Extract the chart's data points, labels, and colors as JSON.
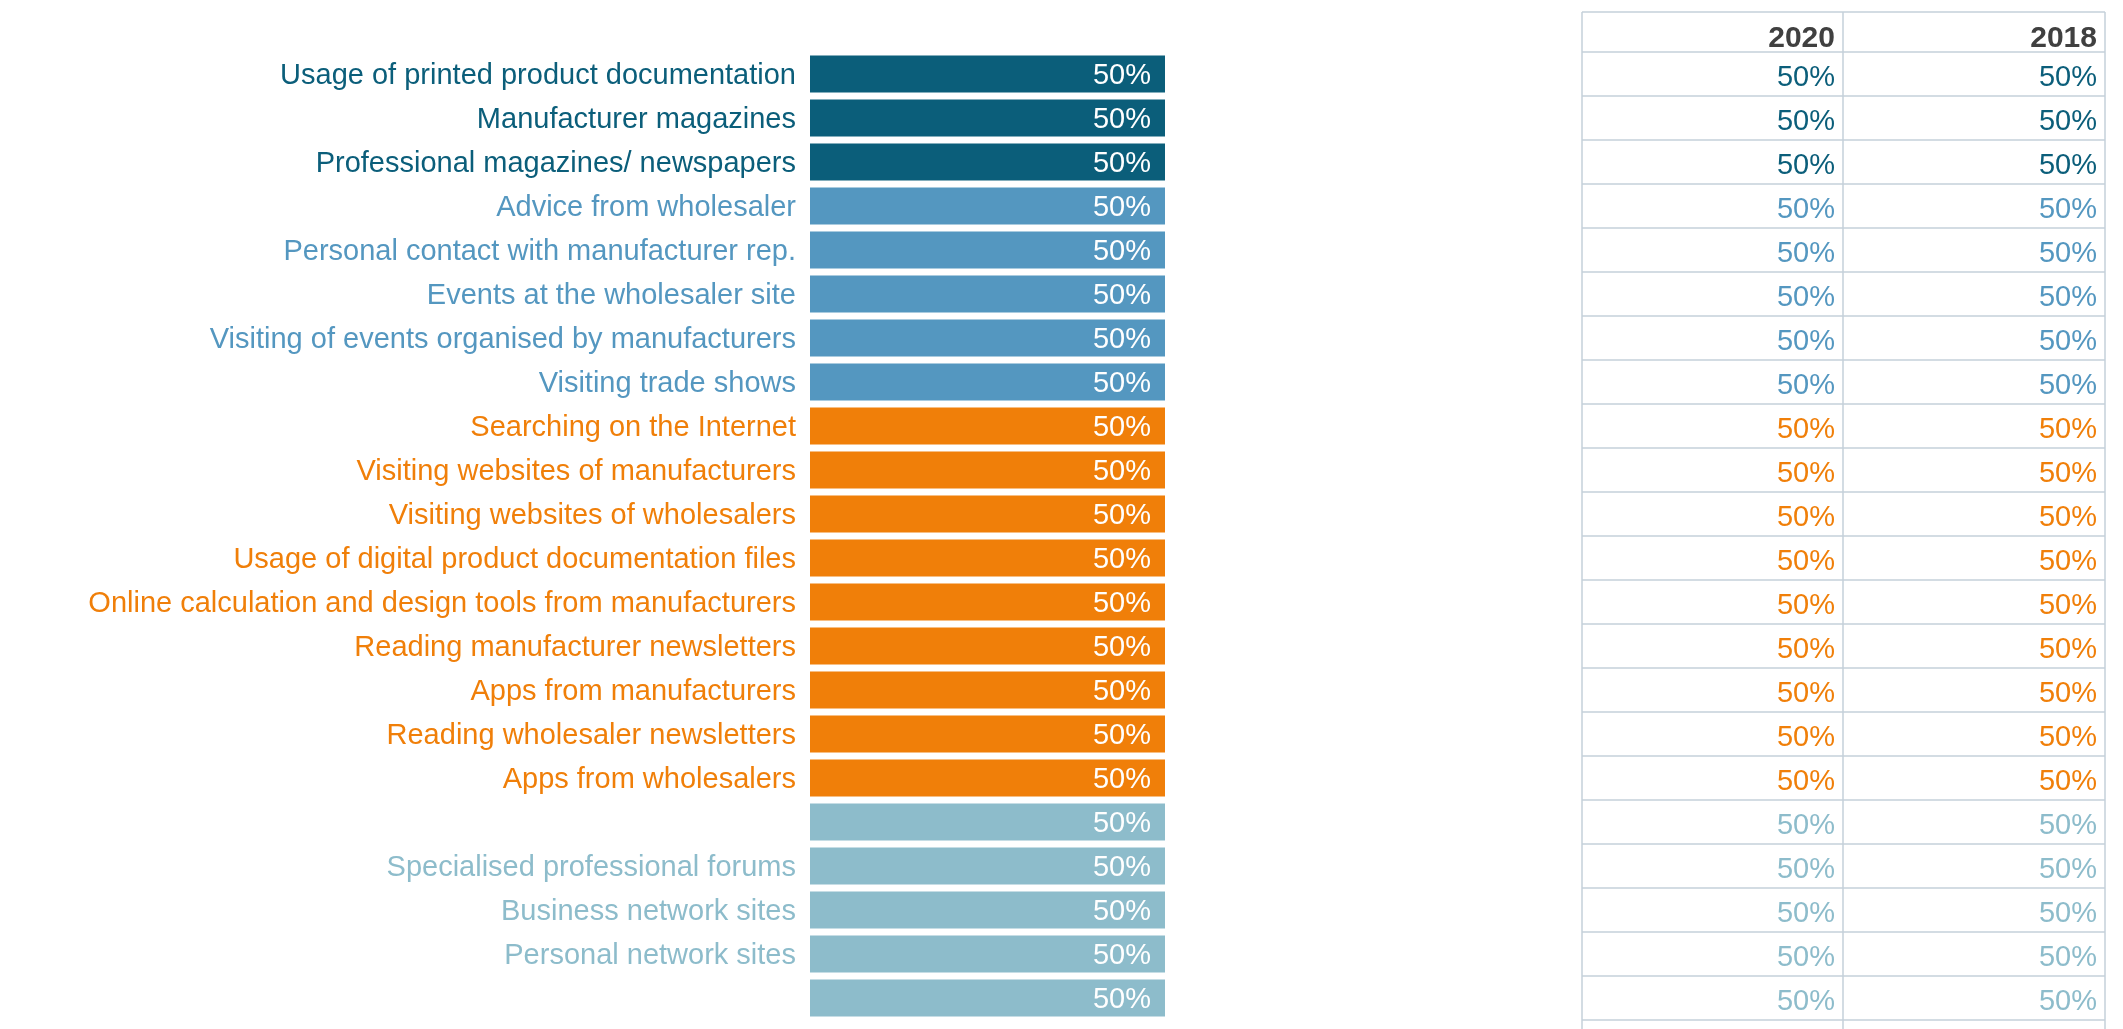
{
  "chart_data": [
    {
      "type": "bar",
      "orientation": "horizontal",
      "categories": [
        "Usage of printed product documentation",
        "Manufacturer magazines",
        "Professional magazines/ newspapers",
        "Advice from wholesaler",
        "Personal contact with manufacturer rep.",
        "Events at the wholesaler site",
        "Visiting of events organised by manufacturers",
        "Visiting trade shows",
        "Searching on the Internet",
        "Visiting websites of manufacturers",
        "Visiting websites of wholesalers",
        "Usage of digital product documentation files",
        "Online calculation and design tools from manufacturers",
        "Reading manufacturer newsletters",
        "Apps from manufacturers",
        "Reading wholesaler newsletters",
        "Apps from wholesalers",
        null,
        "Specialised professional forums",
        "Business network sites",
        "Personal network sites",
        null
      ],
      "values": [
        50,
        50,
        50,
        50,
        50,
        50,
        50,
        50,
        50,
        50,
        50,
        50,
        50,
        50,
        50,
        50,
        50,
        50,
        50,
        50,
        50,
        50
      ],
      "colors": [
        "#0b5e7a",
        "#0b5e7a",
        "#0b5e7a",
        "#5497c0",
        "#5497c0",
        "#5497c0",
        "#5497c0",
        "#5497c0",
        "#f07f09",
        "#f07f09",
        "#f07f09",
        "#f07f09",
        "#f07f09",
        "#f07f09",
        "#f07f09",
        "#f07f09",
        "#f07f09",
        "#8dbccb",
        "#8dbccb",
        "#8dbccb",
        "#8dbccb",
        "#8dbccb"
      ],
      "value_labels": [
        "50%",
        "50%",
        "50%",
        "50%",
        "50%",
        "50%",
        "50%",
        "50%",
        "50%",
        "50%",
        "50%",
        "50%",
        "50%",
        "50%",
        "50%",
        "50%",
        "50%",
        "50%",
        "50%",
        "50%",
        "50%",
        "50%"
      ]
    },
    {
      "type": "other",
      "categories": [
        "2020",
        "2018"
      ],
      "cell_labels": [
        [
          "50%",
          "50%"
        ],
        [
          "50%",
          "50%"
        ],
        [
          "50%",
          "50%"
        ],
        [
          "50%",
          "50%"
        ],
        [
          "50%",
          "50%"
        ],
        [
          "50%",
          "50%"
        ],
        [
          "50%",
          "50%"
        ],
        [
          "50%",
          "50%"
        ],
        [
          "50%",
          "50%"
        ],
        [
          "50%",
          "50%"
        ],
        [
          "50%",
          "50%"
        ],
        [
          "50%",
          "50%"
        ],
        [
          "50%",
          "50%"
        ],
        [
          "50%",
          "50%"
        ],
        [
          "50%",
          "50%"
        ],
        [
          "50%",
          "50%"
        ],
        [
          "50%",
          "50%"
        ],
        [
          "50%",
          "50%"
        ],
        [
          "50%",
          "50%"
        ],
        [
          "50%",
          "50%"
        ],
        [
          "50%",
          "50%"
        ],
        [
          "50%",
          "50%"
        ]
      ]
    }
  ]
}
